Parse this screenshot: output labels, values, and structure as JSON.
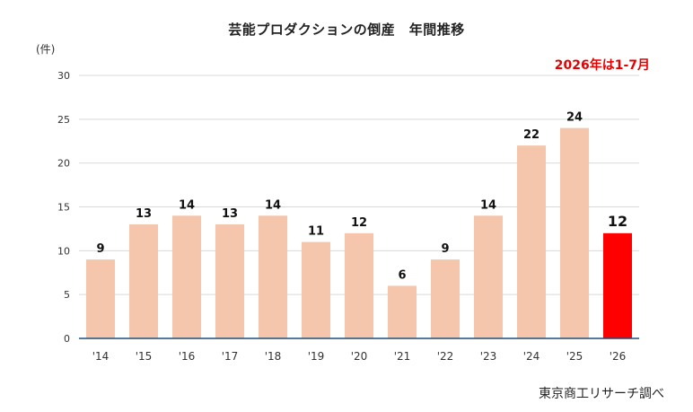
{
  "chart_data": {
    "type": "bar",
    "title": "芸能プロダクションの倒産　年間推移",
    "unit_label": "(件)",
    "note": "2026年は1-7月",
    "source": "東京商工リサーチ調べ",
    "categories": [
      "'14",
      "'15",
      "'16",
      "'17",
      "'18",
      "'19",
      "'20",
      "'21",
      "'22",
      "'23",
      "'24",
      "'25",
      "'26"
    ],
    "values": [
      9,
      13,
      14,
      13,
      14,
      11,
      12,
      6,
      9,
      14,
      22,
      24,
      12
    ],
    "ylim": [
      0,
      30
    ],
    "yticks": [
      0,
      5,
      10,
      15,
      20,
      25,
      30
    ],
    "grid": true,
    "colors": {
      "bar": "#f5c5ac",
      "highlight": "#ff0000",
      "grid": "#d9d9d9",
      "axis": "#1f4e79"
    },
    "highlight_index": 12
  }
}
